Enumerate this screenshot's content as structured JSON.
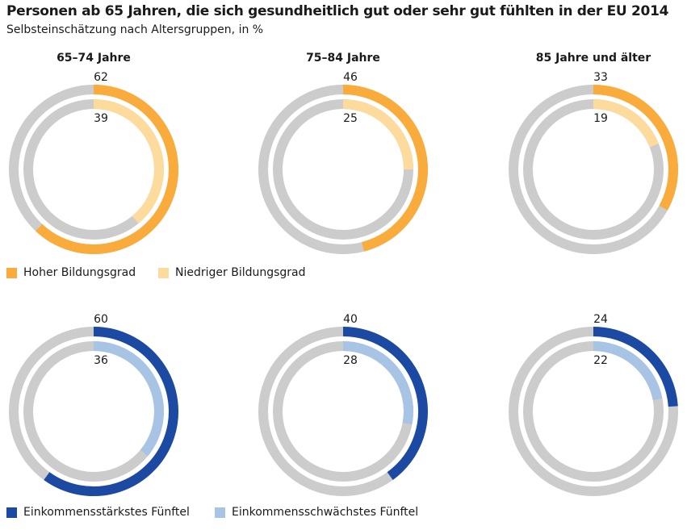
{
  "title": "Personen ab 65 Jahren, die sich gesundheitlich gut oder sehr gut fühlten in der EU 2014",
  "subtitle": "Selbsteinschätzung nach Altersgruppen, in %",
  "colors": {
    "track": "#cccccc",
    "high_education": "#f9ac3b",
    "low_education": "#fcdb9c",
    "top_income": "#1c4aa3",
    "bottom_income": "#a8c4e5"
  },
  "chart_data": [
    {
      "type": "donut",
      "group": "65–74 Jahre",
      "series": [
        {
          "name": "Hoher Bildungsgrad",
          "value": 62
        },
        {
          "name": "Niedriger Bildungsgrad",
          "value": 39
        }
      ]
    },
    {
      "type": "donut",
      "group": "75–84 Jahre",
      "series": [
        {
          "name": "Hoher Bildungsgrad",
          "value": 46
        },
        {
          "name": "Niedriger Bildungsgrad",
          "value": 25
        }
      ]
    },
    {
      "type": "donut",
      "group": "85 Jahre und älter",
      "series": [
        {
          "name": "Hoher Bildungsgrad",
          "value": 33
        },
        {
          "name": "Niedriger Bildungsgrad",
          "value": 19
        }
      ]
    },
    {
      "type": "donut",
      "group": "65–74 Jahre",
      "series": [
        {
          "name": "Einkommensstärkstes Fünftel",
          "value": 60
        },
        {
          "name": "Einkommensschwächstes Fünftel",
          "value": 36
        }
      ]
    },
    {
      "type": "donut",
      "group": "75–84 Jahre",
      "series": [
        {
          "name": "Einkommensstärkstes Fünftel",
          "value": 40
        },
        {
          "name": "Einkommensschwächstes Fünftel",
          "value": 28
        }
      ]
    },
    {
      "type": "donut",
      "group": "85 Jahre und älter",
      "series": [
        {
          "name": "Einkommensstärkstes Fünftel",
          "value": 24
        },
        {
          "name": "Einkommensschwächstes Fünftel",
          "value": 22
        }
      ]
    }
  ],
  "legends": {
    "education": [
      {
        "label": "Hoher Bildungsgrad",
        "color": "#f9ac3b"
      },
      {
        "label": "Niedriger Bildungsgrad",
        "color": "#fcdb9c"
      }
    ],
    "income": [
      {
        "label": "Einkommensstärkstes Fünftel",
        "color": "#1c4aa3"
      },
      {
        "label": "Einkommensschwächstes Fünftel",
        "color": "#a8c4e5"
      }
    ]
  }
}
